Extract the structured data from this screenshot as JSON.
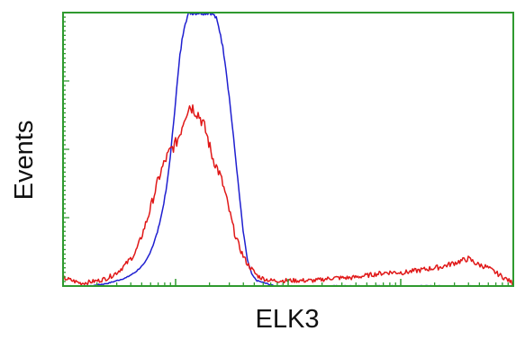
{
  "chart_data": {
    "type": "line",
    "xlabel": "ELK3",
    "ylabel": "Events",
    "xscale": "log",
    "grid": false,
    "legend": "none",
    "xlim": [
      0,
      1
    ],
    "ylim": [
      0,
      1
    ],
    "series": [
      {
        "color": "#1f1fd0",
        "x": [
          0.0,
          0.06,
          0.1,
          0.12,
          0.14,
          0.16,
          0.18,
          0.19,
          0.2,
          0.21,
          0.22,
          0.23,
          0.24,
          0.25,
          0.26,
          0.27,
          0.28,
          0.29,
          0.3,
          0.31,
          0.32,
          0.33,
          0.34,
          0.35,
          0.36,
          0.37,
          0.38,
          0.39,
          0.4,
          0.41,
          0.42,
          0.43,
          0.45,
          0.47,
          0.5,
          0.55,
          0.6,
          0.7,
          0.8,
          0.9,
          1.0
        ],
        "values": [
          0.0,
          0.0,
          0.01,
          0.02,
          0.03,
          0.05,
          0.08,
          0.11,
          0.15,
          0.2,
          0.27,
          0.36,
          0.5,
          0.68,
          0.85,
          0.96,
          1.0,
          1.0,
          1.0,
          1.0,
          1.0,
          1.0,
          0.98,
          0.92,
          0.82,
          0.68,
          0.52,
          0.36,
          0.2,
          0.09,
          0.04,
          0.02,
          0.01,
          0.0,
          0.0,
          0.0,
          0.0,
          0.0,
          0.0,
          0.0,
          0.0
        ]
      },
      {
        "color": "#e01818",
        "x": [
          0.0,
          0.04,
          0.08,
          0.1,
          0.12,
          0.14,
          0.16,
          0.17,
          0.18,
          0.19,
          0.2,
          0.21,
          0.22,
          0.23,
          0.24,
          0.25,
          0.26,
          0.27,
          0.28,
          0.29,
          0.3,
          0.31,
          0.32,
          0.33,
          0.34,
          0.35,
          0.36,
          0.37,
          0.38,
          0.39,
          0.4,
          0.41,
          0.42,
          0.43,
          0.44,
          0.46,
          0.48,
          0.52,
          0.56,
          0.6,
          0.64,
          0.68,
          0.72,
          0.76,
          0.8,
          0.84,
          0.86,
          0.88,
          0.9,
          0.92,
          0.94,
          0.96,
          0.98,
          1.0
        ],
        "values": [
          0.03,
          0.01,
          0.02,
          0.03,
          0.05,
          0.08,
          0.12,
          0.16,
          0.21,
          0.26,
          0.32,
          0.38,
          0.43,
          0.47,
          0.5,
          0.52,
          0.56,
          0.62,
          0.66,
          0.65,
          0.63,
          0.6,
          0.55,
          0.48,
          0.44,
          0.4,
          0.34,
          0.27,
          0.2,
          0.15,
          0.11,
          0.08,
          0.06,
          0.04,
          0.03,
          0.02,
          0.02,
          0.02,
          0.02,
          0.03,
          0.03,
          0.04,
          0.05,
          0.05,
          0.06,
          0.07,
          0.08,
          0.09,
          0.1,
          0.08,
          0.07,
          0.05,
          0.03,
          0.01
        ]
      }
    ]
  }
}
